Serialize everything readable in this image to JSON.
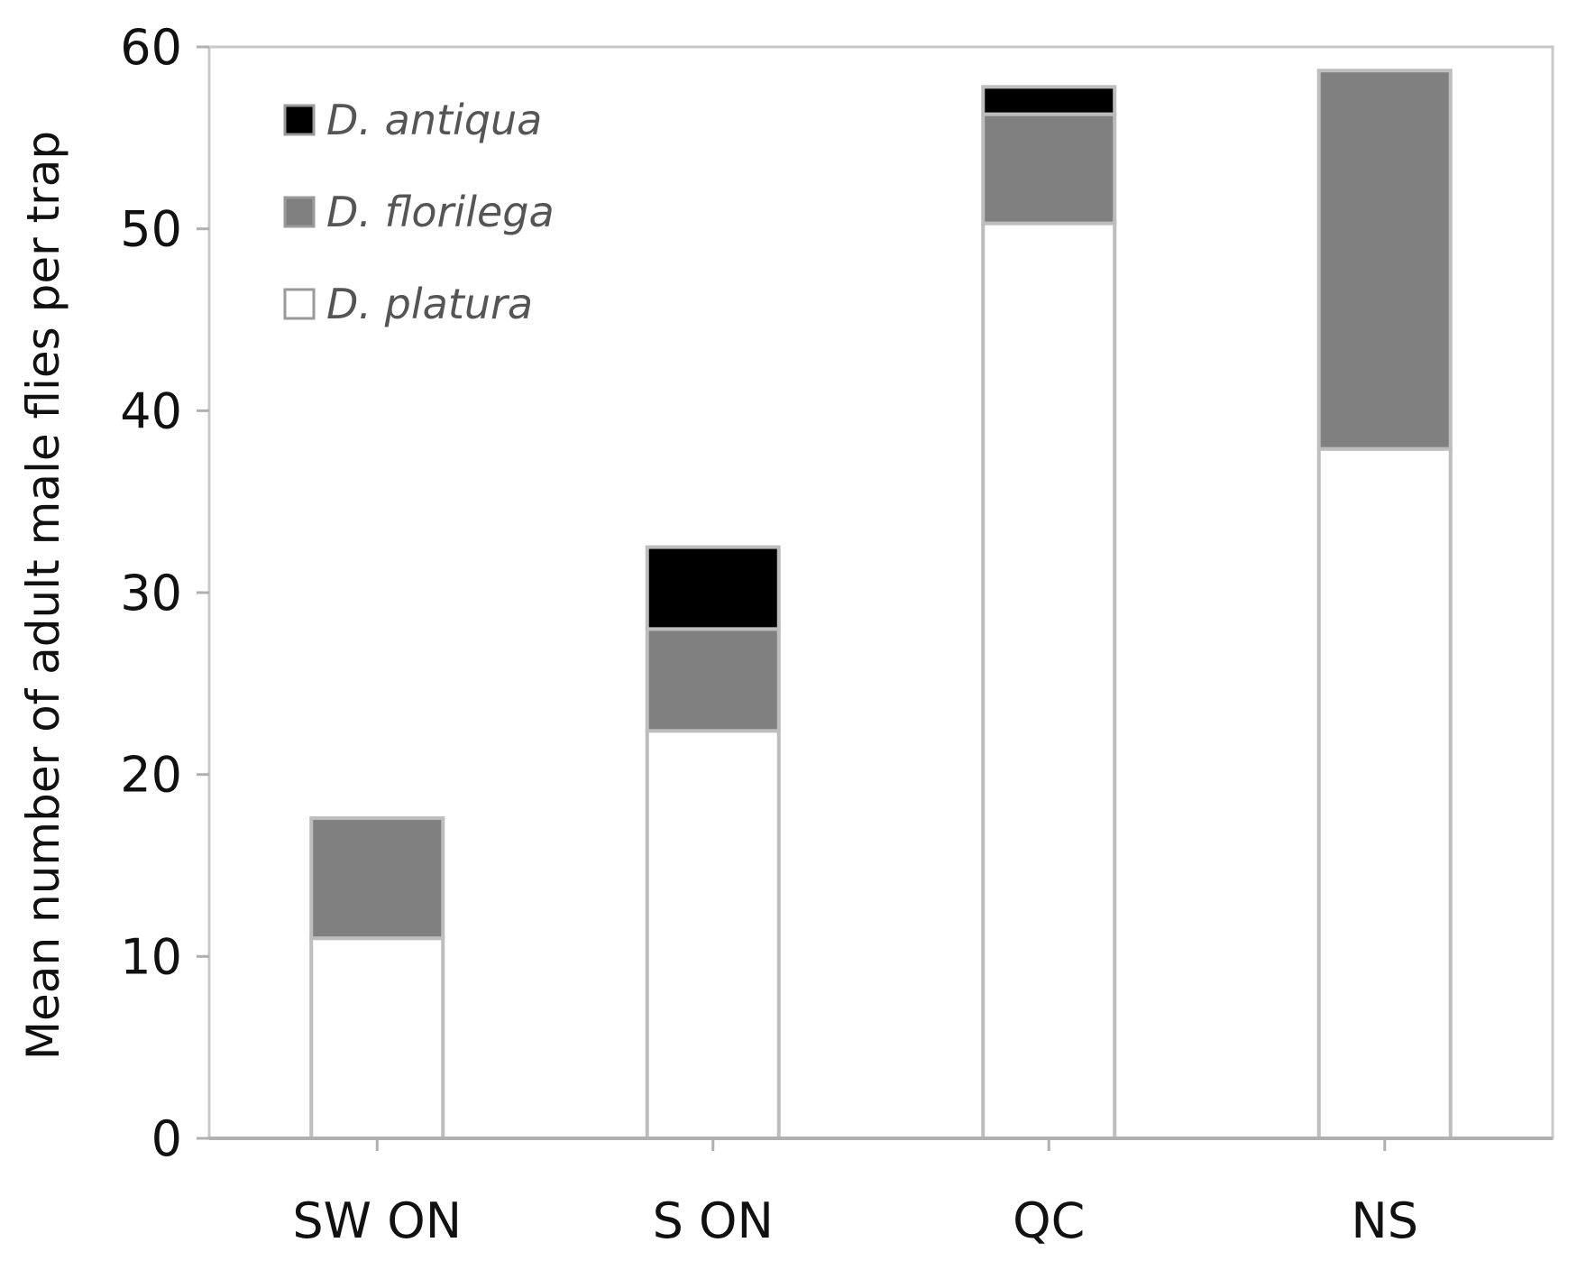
{
  "chart_data": {
    "type": "bar",
    "stacked": true,
    "title": "",
    "xlabel": "",
    "ylabel": "Mean number of adult male flies per trap",
    "ylim": [
      0,
      60
    ],
    "yticks": [
      0,
      10,
      20,
      30,
      40,
      50,
      60
    ],
    "categories": [
      "SW ON",
      "S ON",
      "QC",
      "NS"
    ],
    "series": [
      {
        "name": "D. platura",
        "color": "#ffffff",
        "values": [
          11.0,
          22.4,
          50.3,
          37.9
        ]
      },
      {
        "name": "D. florilega",
        "color": "#808080",
        "values": [
          6.6,
          5.6,
          6.0,
          20.8
        ]
      },
      {
        "name": "D. antiqua",
        "color": "#000000",
        "values": [
          0.0,
          4.5,
          1.5,
          0.0
        ]
      }
    ],
    "legend": {
      "position": "top-left",
      "order": [
        "D. antiqua",
        "D. florilega",
        "D. platura"
      ]
    },
    "grid": false
  }
}
